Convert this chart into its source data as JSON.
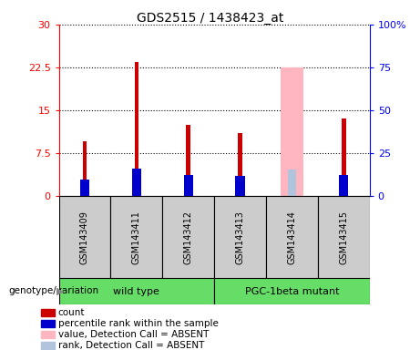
{
  "title": "GDS2515 / 1438423_at",
  "samples": [
    "GSM143409",
    "GSM143411",
    "GSM143412",
    "GSM143413",
    "GSM143414",
    "GSM143415"
  ],
  "count_values": [
    9.5,
    23.5,
    12.5,
    11.0,
    0.0,
    13.5
  ],
  "percentile_values": [
    9.8,
    16.2,
    12.0,
    11.5,
    0.0,
    12.2
  ],
  "absent_value_values": [
    0,
    0,
    0,
    0,
    22.5,
    0
  ],
  "absent_rank_values": [
    0,
    0,
    0,
    0,
    15.5,
    0
  ],
  "left_yticks": [
    0,
    7.5,
    15,
    22.5,
    30
  ],
  "right_yticks": [
    0,
    25,
    50,
    75,
    100
  ],
  "right_yticklabels": [
    "0",
    "25",
    "50",
    "75",
    "100%"
  ],
  "ylim": [
    0,
    30
  ],
  "right_ylim": [
    0,
    100
  ],
  "count_color": "#CC0000",
  "percentile_color": "#0000CC",
  "absent_value_color": "#FFB6C1",
  "absent_rank_color": "#B0C4DE",
  "wildtype_color": "#66DD66",
  "mutant_color": "#66DD66",
  "label_bg": "#CCCCCC",
  "genotype_label": "genotype/variation",
  "legend_items": [
    {
      "label": "count",
      "color": "#CC0000"
    },
    {
      "label": "percentile rank within the sample",
      "color": "#0000CC"
    },
    {
      "label": "value, Detection Call = ABSENT",
      "color": "#FFB6C1"
    },
    {
      "label": "rank, Detection Call = ABSENT",
      "color": "#B0C4DE"
    }
  ]
}
